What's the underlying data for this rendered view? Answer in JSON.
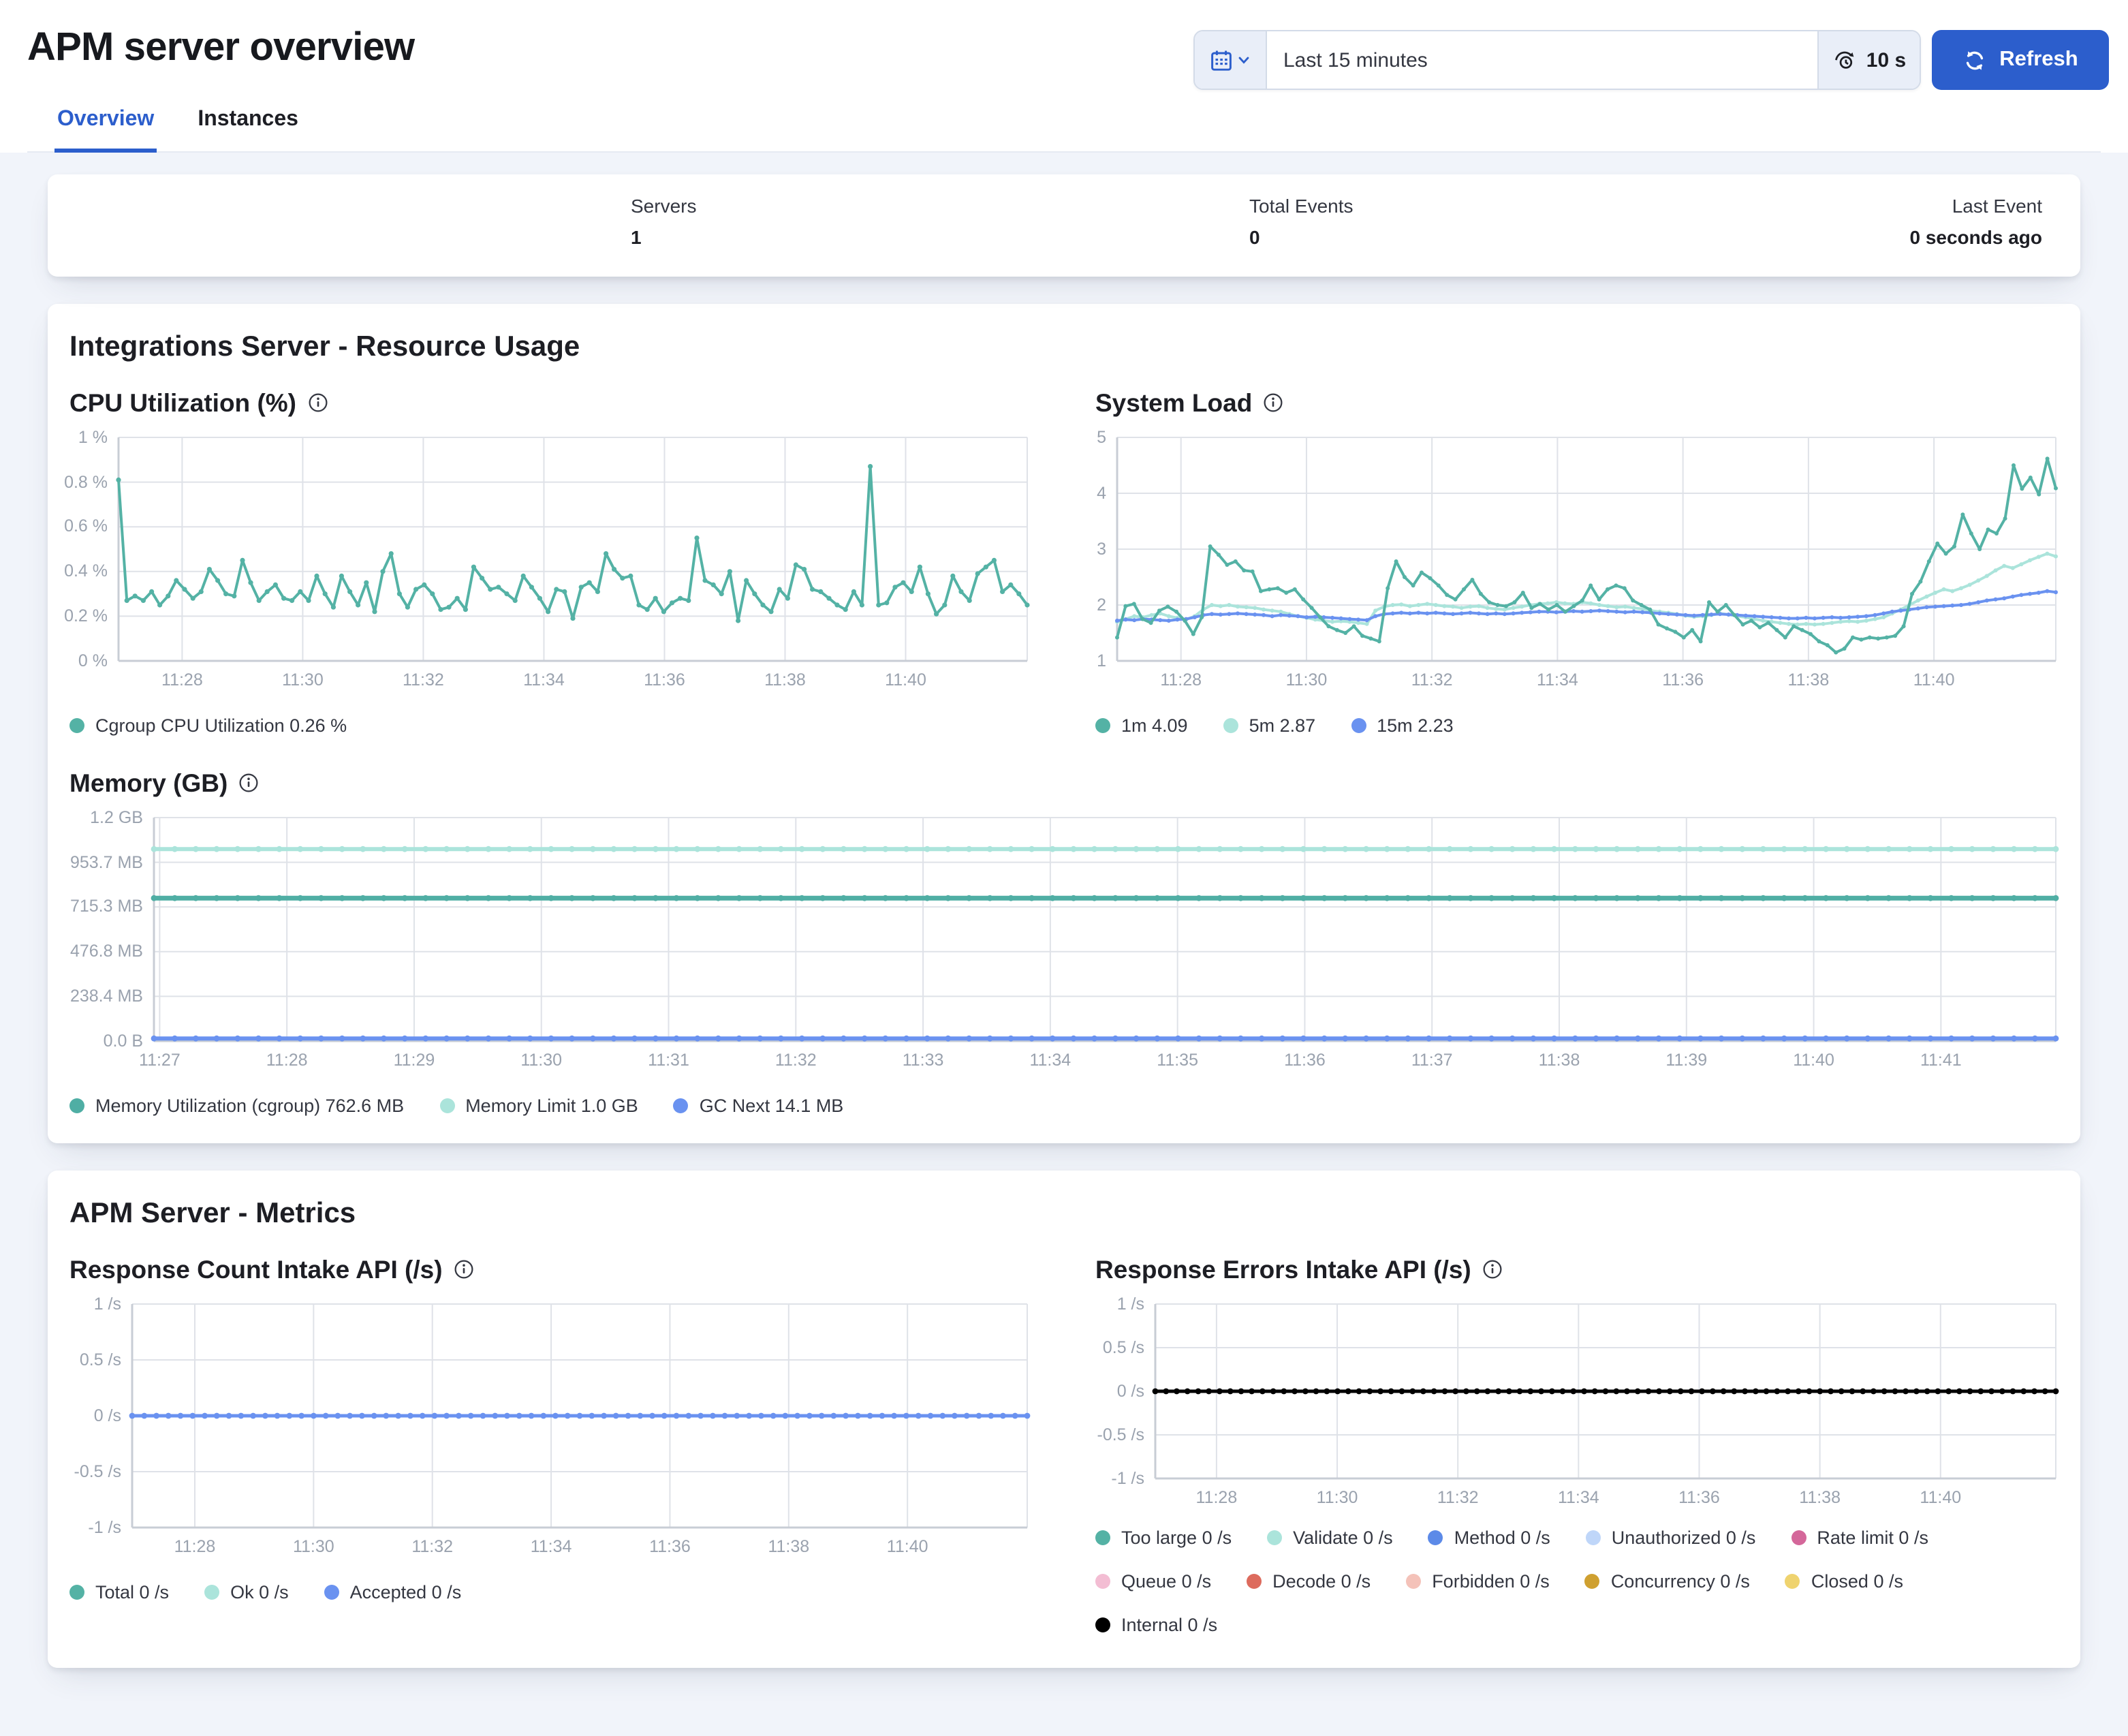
{
  "header": {
    "title": "APM server overview",
    "time_range": "Last 15 minutes",
    "refresh_interval": "10 s",
    "refresh_label": "Refresh"
  },
  "tabs": [
    {
      "label": "Overview",
      "active": true
    },
    {
      "label": "Instances",
      "active": false
    }
  ],
  "stats": [
    {
      "label": "Servers",
      "value": "1"
    },
    {
      "label": "Total Events",
      "value": "0"
    },
    {
      "label": "Last Event",
      "value": "0 seconds ago"
    }
  ],
  "sections": {
    "resource": {
      "title": "Integrations Server - Resource Usage"
    },
    "metrics": {
      "title": "APM Server - Metrics"
    }
  },
  "colors": {
    "accent_blue": "#2C5ECC",
    "teal": "#54B2A5",
    "light_teal": "#ABE4DB",
    "blue": "#6A92F0",
    "pale_blue": "#BFD6F9",
    "pink": "#D4679A",
    "pale_pink": "#F3BDD3",
    "red": "#DD6B5D",
    "pale_red": "#F4C2B9",
    "gold": "#CFA030",
    "pale_gold": "#EFD36F",
    "black": "#000000"
  },
  "chart_data": {
    "cpu": {
      "type": "line",
      "title": "CPU Utilization (%)",
      "y_min": 0,
      "y_max": 1,
      "y_ticks": [
        {
          "v": 0,
          "label": "0 %"
        },
        {
          "v": 0.2,
          "label": "0.2 %"
        },
        {
          "v": 0.4,
          "label": "0.4 %"
        },
        {
          "v": 0.6,
          "label": "0.6 %"
        },
        {
          "v": 0.8,
          "label": "0.8 %"
        },
        {
          "v": 1,
          "label": "1 %"
        }
      ],
      "x_ticks": {
        "labels": [
          "11:28",
          "11:30",
          "11:32",
          "11:34",
          "11:36",
          "11:38",
          "11:40"
        ],
        "start": 0.07,
        "step": 0.1327
      },
      "series": [
        {
          "name": "Cgroup CPU Utilization 0.26 %",
          "color": "#54B2A5",
          "width": 2,
          "marker": 1.8,
          "values": [
            0.81,
            0.27,
            0.29,
            0.27,
            0.31,
            0.25,
            0.29,
            0.36,
            0.32,
            0.28,
            0.31,
            0.41,
            0.36,
            0.3,
            0.29,
            0.45,
            0.35,
            0.27,
            0.31,
            0.34,
            0.28,
            0.27,
            0.31,
            0.27,
            0.38,
            0.3,
            0.24,
            0.38,
            0.31,
            0.25,
            0.35,
            0.22,
            0.4,
            0.48,
            0.3,
            0.24,
            0.32,
            0.34,
            0.3,
            0.23,
            0.24,
            0.28,
            0.23,
            0.42,
            0.37,
            0.32,
            0.33,
            0.3,
            0.27,
            0.38,
            0.33,
            0.28,
            0.22,
            0.32,
            0.31,
            0.19,
            0.33,
            0.35,
            0.31,
            0.48,
            0.41,
            0.37,
            0.38,
            0.25,
            0.23,
            0.28,
            0.22,
            0.26,
            0.28,
            0.27,
            0.55,
            0.36,
            0.34,
            0.3,
            0.4,
            0.18,
            0.36,
            0.3,
            0.25,
            0.22,
            0.32,
            0.28,
            0.43,
            0.41,
            0.32,
            0.31,
            0.28,
            0.25,
            0.23,
            0.31,
            0.25,
            0.87,
            0.25,
            0.26,
            0.33,
            0.35,
            0.31,
            0.42,
            0.3,
            0.21,
            0.25,
            0.38,
            0.31,
            0.27,
            0.39,
            0.42,
            0.45,
            0.31,
            0.34,
            0.3,
            0.25
          ]
        }
      ]
    },
    "load": {
      "type": "line",
      "title": "System Load",
      "y_min": 1,
      "y_max": 5,
      "y_ticks": [
        {
          "v": 1,
          "label": "1"
        },
        {
          "v": 2,
          "label": "2"
        },
        {
          "v": 3,
          "label": "3"
        },
        {
          "v": 4,
          "label": "4"
        },
        {
          "v": 5,
          "label": "5"
        }
      ],
      "x_ticks": {
        "labels": [
          "11:28",
          "11:30",
          "11:32",
          "11:34",
          "11:36",
          "11:38",
          "11:40"
        ],
        "start": 0.068,
        "step": 0.1337
      },
      "series": [
        {
          "name": "1m 4.09",
          "color": "#54B2A5",
          "width": 2,
          "marker": 1.5,
          "z": 2,
          "values": [
            1.42,
            1.98,
            2.02,
            1.75,
            1.68,
            1.9,
            1.97,
            1.88,
            1.72,
            1.48,
            1.78,
            3.05,
            2.9,
            2.72,
            2.78,
            2.62,
            2.6,
            2.25,
            2.28,
            2.3,
            2.22,
            2.28,
            2.1,
            1.95,
            1.78,
            1.62,
            1.55,
            1.5,
            1.62,
            1.45,
            1.4,
            1.35,
            2.3,
            2.78,
            2.5,
            2.35,
            2.58,
            2.48,
            2.35,
            2.18,
            2.1,
            2.28,
            2.45,
            2.2,
            2.05,
            2.0,
            1.98,
            2.05,
            2.22,
            1.95,
            2.02,
            1.92,
            2.0,
            1.88,
            1.98,
            2.08,
            2.35,
            2.1,
            2.28,
            2.35,
            2.3,
            2.08,
            2.0,
            1.92,
            1.65,
            1.58,
            1.52,
            1.42,
            1.55,
            1.35,
            2.05,
            1.88,
            2.0,
            1.82,
            1.65,
            1.72,
            1.6,
            1.68,
            1.55,
            1.42,
            1.62,
            1.55,
            1.48,
            1.35,
            1.28,
            1.15,
            1.22,
            1.42,
            1.38,
            1.42,
            1.4,
            1.42,
            1.45,
            1.62,
            2.2,
            2.42,
            2.78,
            3.1,
            2.92,
            3.05,
            3.62,
            3.28,
            3.0,
            3.35,
            3.28,
            3.55,
            4.5,
            4.08,
            4.28,
            3.98,
            4.62,
            4.09
          ]
        },
        {
          "name": "5m 2.87",
          "color": "#ABE4DB",
          "width": 2,
          "marker": 1.5,
          "z": 0,
          "values": [
            1.7,
            1.75,
            1.8,
            1.78,
            1.82,
            1.85,
            1.8,
            1.77,
            1.74,
            1.8,
            1.92,
            2.0,
            1.98,
            2.0,
            1.97,
            1.96,
            1.95,
            1.92,
            1.9,
            1.88,
            1.84,
            1.8,
            1.77,
            1.74,
            1.72,
            1.7,
            1.71,
            1.7,
            1.68,
            1.66,
            1.9,
            1.97,
            2.0,
            2.01,
            1.98,
            2.0,
            2.02,
            2.0,
            1.98,
            1.97,
            1.95,
            1.97,
            1.98,
            1.95,
            1.93,
            1.92,
            1.95,
            1.97,
            2.0,
            2.02,
            2.03,
            2.05,
            2.03,
            2.02,
            2.05,
            2.03,
            2.0,
            1.98,
            1.96,
            1.97,
            1.95,
            1.93,
            1.9,
            1.88,
            1.86,
            1.84,
            1.81,
            1.79,
            1.8,
            1.82,
            1.85,
            1.83,
            1.8,
            1.78,
            1.75,
            1.72,
            1.7,
            1.68,
            1.66,
            1.65,
            1.66,
            1.65,
            1.66,
            1.68,
            1.7,
            1.71,
            1.7,
            1.72,
            1.75,
            1.78,
            1.85,
            1.92,
            2.0,
            2.08,
            2.15,
            2.22,
            2.28,
            2.25,
            2.3,
            2.36,
            2.44,
            2.52,
            2.62,
            2.7,
            2.66,
            2.73,
            2.8,
            2.86,
            2.92,
            2.87
          ]
        },
        {
          "name": "15m 2.23",
          "color": "#6A92F0",
          "width": 2,
          "marker": 1.5,
          "z": 1,
          "values": [
            1.72,
            1.74,
            1.73,
            1.75,
            1.74,
            1.73,
            1.72,
            1.74,
            1.75,
            1.78,
            1.82,
            1.84,
            1.83,
            1.84,
            1.85,
            1.84,
            1.83,
            1.82,
            1.8,
            1.82,
            1.81,
            1.8,
            1.78,
            1.79,
            1.78,
            1.77,
            1.76,
            1.75,
            1.74,
            1.73,
            1.8,
            1.84,
            1.85,
            1.86,
            1.85,
            1.86,
            1.85,
            1.86,
            1.85,
            1.84,
            1.85,
            1.86,
            1.85,
            1.84,
            1.85,
            1.84,
            1.85,
            1.86,
            1.87,
            1.88,
            1.88,
            1.87,
            1.88,
            1.89,
            1.88,
            1.89,
            1.9,
            1.89,
            1.88,
            1.87,
            1.88,
            1.87,
            1.86,
            1.85,
            1.84,
            1.83,
            1.82,
            1.81,
            1.82,
            1.83,
            1.84,
            1.83,
            1.82,
            1.81,
            1.8,
            1.79,
            1.78,
            1.77,
            1.76,
            1.76,
            1.77,
            1.76,
            1.77,
            1.78,
            1.77,
            1.78,
            1.79,
            1.8,
            1.82,
            1.85,
            1.88,
            1.9,
            1.92,
            1.94,
            1.96,
            1.97,
            1.98,
            1.99,
            2.0,
            2.02,
            2.05,
            2.08,
            2.1,
            2.12,
            2.15,
            2.18,
            2.2,
            2.22,
            2.25,
            2.23
          ]
        }
      ]
    },
    "memory": {
      "type": "line",
      "title": "Memory (GB)",
      "y_min": 0,
      "y_max": 1192,
      "y_ticks": [
        {
          "v": 0,
          "label": "0.0 B"
        },
        {
          "v": 238.4,
          "label": "238.4 MB"
        },
        {
          "v": 476.8,
          "label": "476.8 MB"
        },
        {
          "v": 715.3,
          "label": "715.3 MB"
        },
        {
          "v": 953.7,
          "label": "953.7 MB"
        },
        {
          "v": 1192,
          "label": "1.2 GB"
        }
      ],
      "x_ticks": {
        "labels": [
          "11:27",
          "11:28",
          "11:29",
          "11:30",
          "11:31",
          "11:32",
          "11:33",
          "11:34",
          "11:35",
          "11:36",
          "11:37",
          "11:38",
          "11:39",
          "11:40",
          "11:41"
        ],
        "start": 0.003,
        "step": 0.0669
      },
      "series": [
        {
          "name": "Memory Utilization (cgroup) 762.6 MB",
          "color": "#4FAEA4",
          "width": 3.5,
          "marker": 2.2,
          "z": 1,
          "const": 762.6,
          "count": 92
        },
        {
          "name": "Memory Limit 1.0 GB",
          "color": "#ABE4DB",
          "width": 3,
          "marker": 2.2,
          "z": 0,
          "const": 1024,
          "count": 92
        },
        {
          "name": "GC Next 14.1 MB",
          "color": "#6A92F0",
          "width": 3,
          "marker": 2.2,
          "z": 2,
          "const": 14.1,
          "count": 92
        }
      ]
    },
    "resp_count": {
      "type": "line",
      "title": "Response Count Intake API (/s)",
      "y_min": -1,
      "y_max": 1,
      "y_ticks": [
        {
          "v": -1,
          "label": "-1 /s"
        },
        {
          "v": -0.5,
          "label": "-0.5 /s"
        },
        {
          "v": 0,
          "label": "0 /s"
        },
        {
          "v": 0.5,
          "label": "0.5 /s"
        },
        {
          "v": 1,
          "label": "1 /s"
        }
      ],
      "x_ticks": {
        "labels": [
          "11:28",
          "11:30",
          "11:32",
          "11:34",
          "11:36",
          "11:38",
          "11:40"
        ],
        "start": 0.07,
        "step": 0.1327
      },
      "series": [
        {
          "name": "Total 0 /s",
          "color": "#54B2A5",
          "width": 2,
          "z": 0,
          "const": 0,
          "count": 2
        },
        {
          "name": "Ok 0 /s",
          "color": "#ABE4DB",
          "width": 2,
          "z": 1,
          "const": 0,
          "count": 2
        },
        {
          "name": "Accepted 0 /s",
          "color": "#6A92F0",
          "width": 2.5,
          "marker": 2.2,
          "z": 2,
          "const": 0,
          "count": 75
        }
      ]
    },
    "resp_errors": {
      "type": "line",
      "title": "Response Errors Intake API (/s)",
      "y_min": -1,
      "y_max": 1,
      "y_ticks": [
        {
          "v": -1,
          "label": "-1 /s"
        },
        {
          "v": -0.5,
          "label": "-0.5 /s"
        },
        {
          "v": 0,
          "label": "0 /s"
        },
        {
          "v": 0.5,
          "label": "0.5 /s"
        },
        {
          "v": 1,
          "label": "1 /s"
        }
      ],
      "x_ticks": {
        "labels": [
          "11:28",
          "11:30",
          "11:32",
          "11:34",
          "11:36",
          "11:38",
          "11:40"
        ],
        "start": 0.068,
        "step": 0.134
      },
      "series": [
        {
          "name": "Too large 0 /s",
          "color": "#54B2A5",
          "width": 2,
          "z": 0,
          "const": 0,
          "count": 2
        },
        {
          "name": "Validate 0 /s",
          "color": "#ABE4DB",
          "width": 2,
          "z": 1,
          "const": 0,
          "count": 2
        },
        {
          "name": "Method 0 /s",
          "color": "#5C8AE8",
          "width": 2,
          "z": 2,
          "const": 0,
          "count": 2
        },
        {
          "name": "Unauthorized 0 /s",
          "color": "#BFD6F9",
          "width": 2,
          "z": 3,
          "const": 0,
          "count": 2
        },
        {
          "name": "Rate limit 0 /s",
          "color": "#D4679A",
          "width": 2,
          "z": 4,
          "const": 0,
          "count": 2
        },
        {
          "name": "Queue 0 /s",
          "color": "#F3BDD3",
          "width": 2,
          "z": 5,
          "const": 0,
          "count": 2
        },
        {
          "name": "Decode 0 /s",
          "color": "#DD6B5D",
          "width": 2,
          "z": 6,
          "const": 0,
          "count": 2
        },
        {
          "name": "Forbidden 0 /s",
          "color": "#F4C2B9",
          "width": 2,
          "z": 7,
          "const": 0,
          "count": 2
        },
        {
          "name": "Concurrency 0 /s",
          "color": "#CFA030",
          "width": 2,
          "z": 8,
          "const": 0,
          "count": 2
        },
        {
          "name": "Closed 0 /s",
          "color": "#EFD36F",
          "width": 2,
          "z": 9,
          "const": 0,
          "count": 2
        },
        {
          "name": "Internal 0 /s",
          "color": "#000000",
          "width": 2.5,
          "marker": 2.2,
          "z": 10,
          "const": 0,
          "count": 85
        }
      ]
    }
  }
}
